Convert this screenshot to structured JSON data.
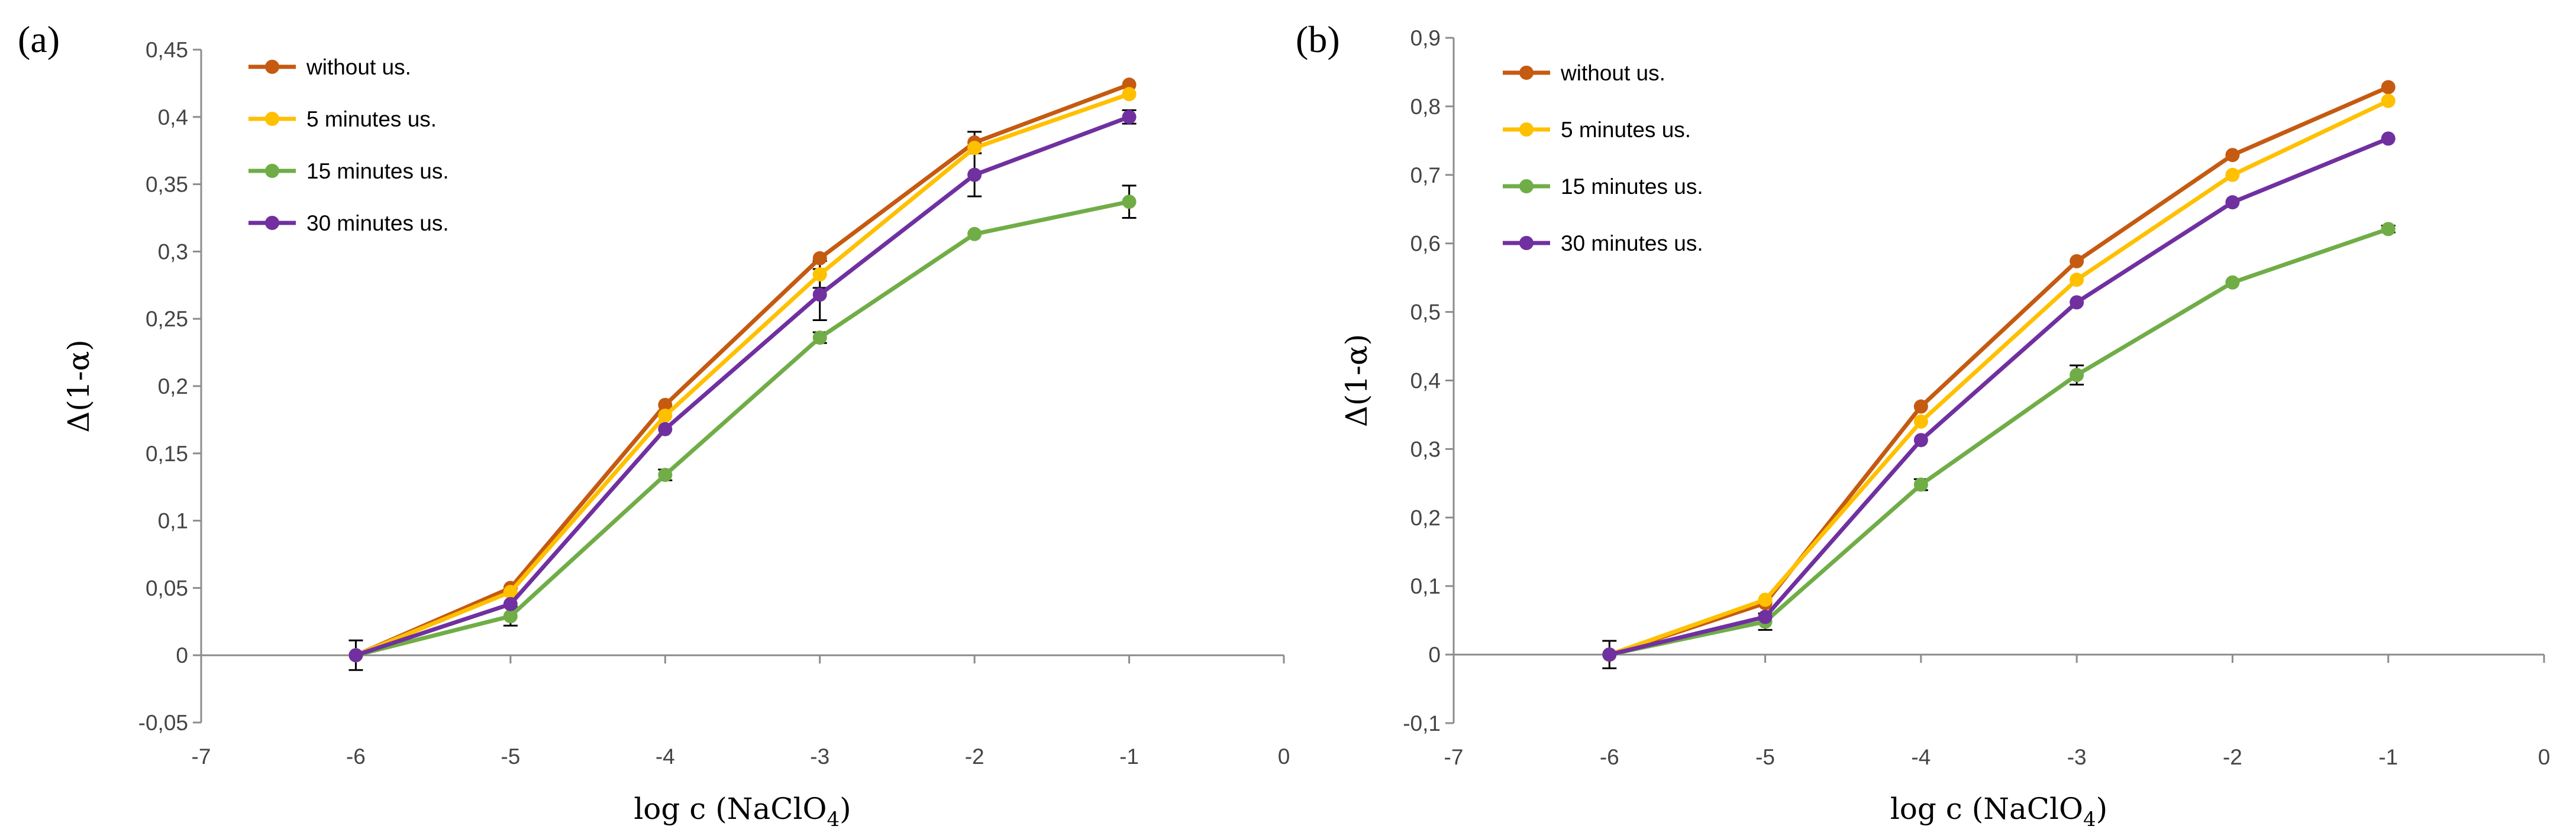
{
  "chart_data": [
    {
      "panel_label": "(a)",
      "type": "line",
      "xlabel": "log c (NaClO",
      "xlabel_sub": "4",
      "xlabel_end": ")",
      "ylabel": "Δ(1-α)",
      "xlim": [
        -7,
        0
      ],
      "ylim": [
        -0.05,
        0.45
      ],
      "xticks": [
        -7,
        -6,
        -5,
        -4,
        -3,
        -2,
        -1,
        0
      ],
      "xtick_labels": [
        "-7",
        "-6",
        "-5",
        "-4",
        "-3",
        "-2",
        "-1",
        "0"
      ],
      "yticks": [
        -0.05,
        0,
        0.05,
        0.1,
        0.15,
        0.2,
        0.25,
        0.3,
        0.35,
        0.4,
        0.45
      ],
      "ytick_labels": [
        "-0,05",
        "0",
        "0,05",
        "0,1",
        "0,15",
        "0,2",
        "0,25",
        "0,3",
        "0,35",
        "0,4",
        "0,45"
      ],
      "grid": false,
      "legend": "top-left",
      "x": [
        -6,
        -5,
        -4,
        -3,
        -2,
        -1
      ],
      "series": [
        {
          "name": "without us.",
          "color": "#c55a11",
          "values": [
            0.0,
            0.05,
            0.186,
            0.295,
            0.381,
            0.424
          ]
        },
        {
          "name": "5 minutes us.",
          "color": "#ffc000",
          "values": [
            0.0,
            0.047,
            0.178,
            0.283,
            0.377,
            0.417
          ]
        },
        {
          "name": "15 minutes us.",
          "color": "#70ad47",
          "values": [
            0.0,
            0.029,
            0.134,
            0.236,
            0.313,
            0.337
          ]
        },
        {
          "name": "30 minutes us.",
          "color": "#7030a0",
          "values": [
            0.0,
            0.038,
            0.168,
            0.268,
            0.357,
            0.4
          ]
        }
      ],
      "error_bars": [
        {
          "series": "without us.",
          "x": -2,
          "err": 0.008
        },
        {
          "series": "5 minutes us.",
          "x": -6,
          "err": 0.011
        },
        {
          "series": "5 minutes us.",
          "x": -3,
          "err": 0.01
        },
        {
          "series": "15 minutes us.",
          "x": -5,
          "err": 0.007
        },
        {
          "series": "15 minutes us.",
          "x": -4,
          "err": 0.004
        },
        {
          "series": "15 minutes us.",
          "x": -3,
          "err": 0.004
        },
        {
          "series": "15 minutes us.",
          "x": -1,
          "err": 0.012
        },
        {
          "series": "30 minutes us.",
          "x": -3,
          "err": 0.019
        },
        {
          "series": "30 minutes us.",
          "x": -2,
          "err": 0.016
        },
        {
          "series": "30 minutes us.",
          "x": -1,
          "err": 0.005
        }
      ]
    },
    {
      "panel_label": "(b)",
      "type": "line",
      "xlabel": "log c (NaClO",
      "xlabel_sub": "4",
      "xlabel_end": ")",
      "ylabel": "Δ(1-α)",
      "xlim": [
        -7,
        0
      ],
      "ylim": [
        -0.1,
        0.9
      ],
      "xticks": [
        -7,
        -6,
        -5,
        -4,
        -3,
        -2,
        -1,
        0
      ],
      "xtick_labels": [
        "-7",
        "-6",
        "-5",
        "-4",
        "-3",
        "-2",
        "-1",
        "0"
      ],
      "yticks": [
        -0.1,
        0,
        0.1,
        0.2,
        0.3,
        0.4,
        0.5,
        0.6,
        0.7,
        0.8,
        0.9
      ],
      "ytick_labels": [
        "-0,1",
        "0",
        "0,1",
        "0,2",
        "0,3",
        "0,4",
        "0,5",
        "0,6",
        "0,7",
        "0,8",
        "0,9"
      ],
      "grid": false,
      "legend": "top-left",
      "x": [
        -6,
        -5,
        -4,
        -3,
        -2,
        -1
      ],
      "series": [
        {
          "name": "without us.",
          "color": "#c55a11",
          "values": [
            0.0,
            0.075,
            0.362,
            0.574,
            0.729,
            0.828
          ]
        },
        {
          "name": "5 minutes us.",
          "color": "#ffc000",
          "values": [
            0.0,
            0.08,
            0.34,
            0.547,
            0.7,
            0.808
          ]
        },
        {
          "name": "15 minutes us.",
          "color": "#70ad47",
          "values": [
            0.0,
            0.048,
            0.248,
            0.408,
            0.543,
            0.621
          ]
        },
        {
          "name": "30 minutes us.",
          "color": "#7030a0",
          "values": [
            0.0,
            0.055,
            0.313,
            0.514,
            0.66,
            0.753
          ]
        }
      ],
      "error_bars": [
        {
          "series": "30 minutes us.",
          "x": -6,
          "err": 0.02
        },
        {
          "series": "15 minutes us.",
          "x": -5,
          "err": 0.012
        },
        {
          "series": "15 minutes us.",
          "x": -4,
          "err": 0.008
        },
        {
          "series": "15 minutes us.",
          "x": -3,
          "err": 0.014
        },
        {
          "series": "15 minutes us.",
          "x": -1,
          "err": 0.005
        }
      ]
    }
  ]
}
